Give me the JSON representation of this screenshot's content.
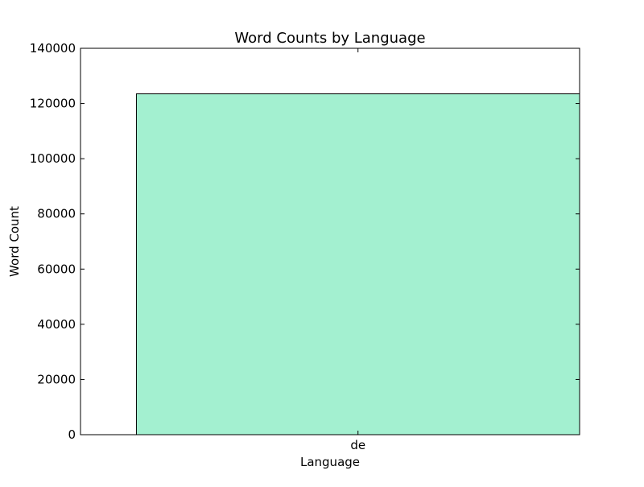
{
  "chart_data": {
    "type": "bar",
    "title": "Word Counts by Language",
    "xlabel": "Language",
    "ylabel": "Word Count",
    "categories": [
      "de"
    ],
    "values": [
      123500
    ],
    "ylim": [
      0,
      140000
    ],
    "yticks": [
      "0",
      "20000",
      "40000",
      "60000",
      "80000",
      "100000",
      "120000",
      "140000"
    ],
    "bar_color": "#a3f0d0",
    "grid": false,
    "legend": "none"
  }
}
